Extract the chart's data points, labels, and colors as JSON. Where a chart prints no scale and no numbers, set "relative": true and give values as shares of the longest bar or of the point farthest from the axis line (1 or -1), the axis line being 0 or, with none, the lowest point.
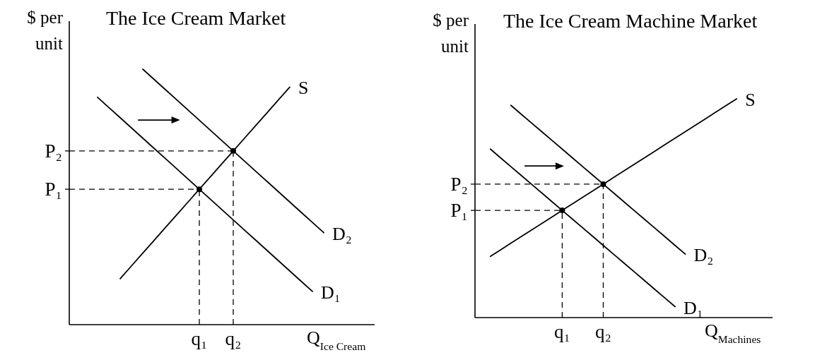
{
  "chart_data": [
    {
      "type": "line",
      "title": "The Ice Cream Market",
      "ylabel": "$ per unit",
      "xlabel": "Q$_{Ice Cream}$",
      "relative": true,
      "categories": [
        null,
        null,
        null,
        null,
        null,
        null,
        null,
        null,
        null,
        null,
        null,
        "q₁",
        null,
        null,
        "q₂",
        null,
        null,
        null,
        null,
        null,
        null,
        null,
        null,
        null,
        null,
        null,
        null
      ],
      "series": [
        {
          "name": "S",
          "color": "#000000",
          "values": [
            null,
            null,
            null,
            null,
            0.18,
            0.23,
            0.28,
            0.33,
            0.38,
            0.43,
            0.48,
            0.53,
            0.58,
            0.63,
            0.68,
            0.73,
            0.78,
            0.83,
            0.88,
            0.93,
            null,
            null,
            null,
            null,
            null,
            null,
            null
          ]
        },
        {
          "name": "D₁",
          "color": "#000000",
          "values": [
            null,
            null,
            0.89,
            0.85,
            0.81,
            0.77,
            0.73,
            0.69,
            0.65,
            0.61,
            0.57,
            0.53,
            0.49,
            0.45,
            0.41,
            0.37,
            0.33,
            0.29,
            0.25,
            0.21,
            0.17,
            0.13,
            null,
            null,
            null,
            null,
            null
          ]
        },
        {
          "name": "D₂",
          "color": "#000000",
          "values": [
            null,
            null,
            null,
            null,
            null,
            null,
            1,
            0.96,
            0.92,
            0.88,
            0.84,
            0.8,
            0.76,
            0.72,
            0.68,
            0.64,
            0.6,
            0.56,
            0.52,
            0.48,
            0.44,
            0.4,
            0.36,
            null,
            null,
            null,
            null
          ]
        },
        {
          "type": "lollipop",
          "color": "#000000",
          "marker": "circle",
          "line_style": "dashed",
          "values": [
            null,
            null,
            null,
            null,
            null,
            null,
            null,
            null,
            null,
            null,
            null,
            0.53,
            null,
            null,
            0.68,
            null,
            null,
            null,
            null,
            null,
            null,
            null,
            null,
            null,
            null,
            null,
            null
          ]
        }
      ],
      "ref_lines": [
        {
          "axis": "y",
          "value": 0.53,
          "label": "P₁",
          "line_style": "dashed"
        },
        {
          "axis": "y",
          "value": 0.68,
          "label": "P₂",
          "line_style": "dashed"
        }
      ]
    },
    {
      "type": "line",
      "title": "The Ice Cream Machine Market",
      "ylabel": "$ per unit",
      "xlabel": "Q$_{Machines}$",
      "relative": true,
      "categories": [
        null,
        null,
        null,
        null,
        null,
        null,
        null,
        null,
        "q₁",
        null,
        null,
        null,
        "q₂",
        null,
        null,
        null,
        null,
        null,
        null,
        null,
        null,
        null,
        null,
        null,
        null,
        null,
        null,
        null,
        null
      ],
      "series": [
        {
          "name": "S",
          "color": "#000000",
          "values": [
            null,
            0.28,
            0.31,
            0.34,
            0.37,
            0.4,
            0.43,
            0.46,
            0.49,
            0.52,
            0.55,
            0.58,
            0.61,
            0.64,
            0.67,
            0.7,
            0.73,
            0.76,
            0.79,
            0.82,
            0.85,
            0.88,
            0.91,
            0.94,
            0.97,
            1,
            null,
            null,
            null
          ]
        },
        {
          "name": "D₁",
          "color": "#000000",
          "values": [
            null,
            0.77,
            0.73,
            0.69,
            0.65,
            0.61,
            0.57,
            0.53,
            0.49,
            0.45,
            0.41,
            0.37,
            0.33,
            0.29,
            0.25,
            0.21,
            0.17,
            0.13,
            0.09,
            0.05,
            null,
            null,
            null,
            null,
            null,
            null,
            null,
            null,
            null
          ]
        },
        {
          "name": "D₂",
          "color": "#000000",
          "values": [
            null,
            null,
            null,
            0.97,
            0.93,
            0.89,
            0.85,
            0.81,
            0.77,
            0.73,
            0.69,
            0.65,
            0.61,
            0.57,
            0.53,
            0.49,
            0.45,
            0.41,
            0.37,
            0.33,
            0.29,
            null,
            null,
            null,
            null,
            null,
            null,
            null,
            null
          ]
        },
        {
          "type": "lollipop",
          "color": "#000000",
          "marker": "circle",
          "line_style": "dashed",
          "values": [
            null,
            null,
            null,
            null,
            null,
            null,
            null,
            null,
            0.49,
            null,
            null,
            null,
            0.61,
            null,
            null,
            null,
            null,
            null,
            null,
            null,
            null,
            null,
            null,
            null,
            null,
            null,
            null,
            null,
            null
          ]
        }
      ],
      "ref_lines": [
        {
          "axis": "y",
          "value": 0.49,
          "label": "P₁",
          "line_style": "dashed"
        },
        {
          "axis": "y",
          "value": 0.61,
          "label": "P₂",
          "line_style": "dashed"
        }
      ]
    }
  ]
}
